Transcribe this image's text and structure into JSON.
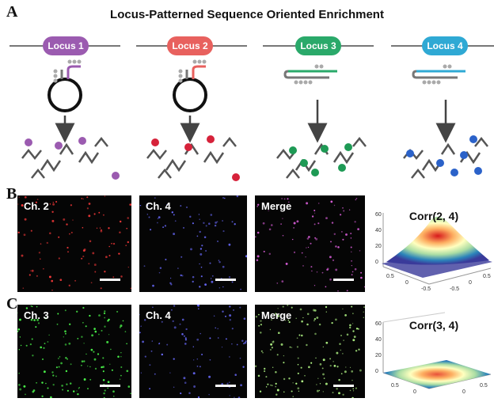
{
  "figure": {
    "title": "Locus-Patterned Sequence Oriented Enrichment",
    "panels": [
      "A",
      "B",
      "C"
    ]
  },
  "loci": [
    {
      "label": "Locus 1",
      "color": "#9b5bb0",
      "probe": "hairpin"
    },
    {
      "label": "Locus 2",
      "color": "#e8615e",
      "probe": "hairpin"
    },
    {
      "label": "Locus 3",
      "color": "#2aa96a",
      "probe": "linear"
    },
    {
      "label": "Locus 4",
      "color": "#2fa9d4",
      "probe": "linear"
    }
  ],
  "row_b": {
    "images": [
      {
        "label": "Ch. 2",
        "dot_color": "#ff3b3b"
      },
      {
        "label": "Ch. 4",
        "dot_color": "#6a6bff"
      },
      {
        "label": "Merge",
        "dot_color": "#d85dd8"
      }
    ],
    "correlation": {
      "title": "Corr(2, 4)",
      "z_ticks": [
        "60",
        "40",
        "20",
        "0"
      ],
      "x_ticks": [
        "0.5",
        "0",
        "-0.5"
      ],
      "y_ticks": [
        "0.5",
        "0",
        "-0.5"
      ]
    }
  },
  "row_c": {
    "images": [
      {
        "label": "Ch. 3",
        "dot_color": "#4dff4d"
      },
      {
        "label": "Ch. 4",
        "dot_color": "#6a6bff"
      },
      {
        "label": "Merge",
        "dot_color": "#b8ff8a"
      }
    ],
    "correlation": {
      "title": "Corr(3, 4)",
      "z_ticks": [
        "60",
        "40",
        "20",
        "0"
      ],
      "x_ticks": [
        "0.5",
        "0"
      ],
      "y_ticks": [
        "0.5",
        "0"
      ]
    }
  }
}
